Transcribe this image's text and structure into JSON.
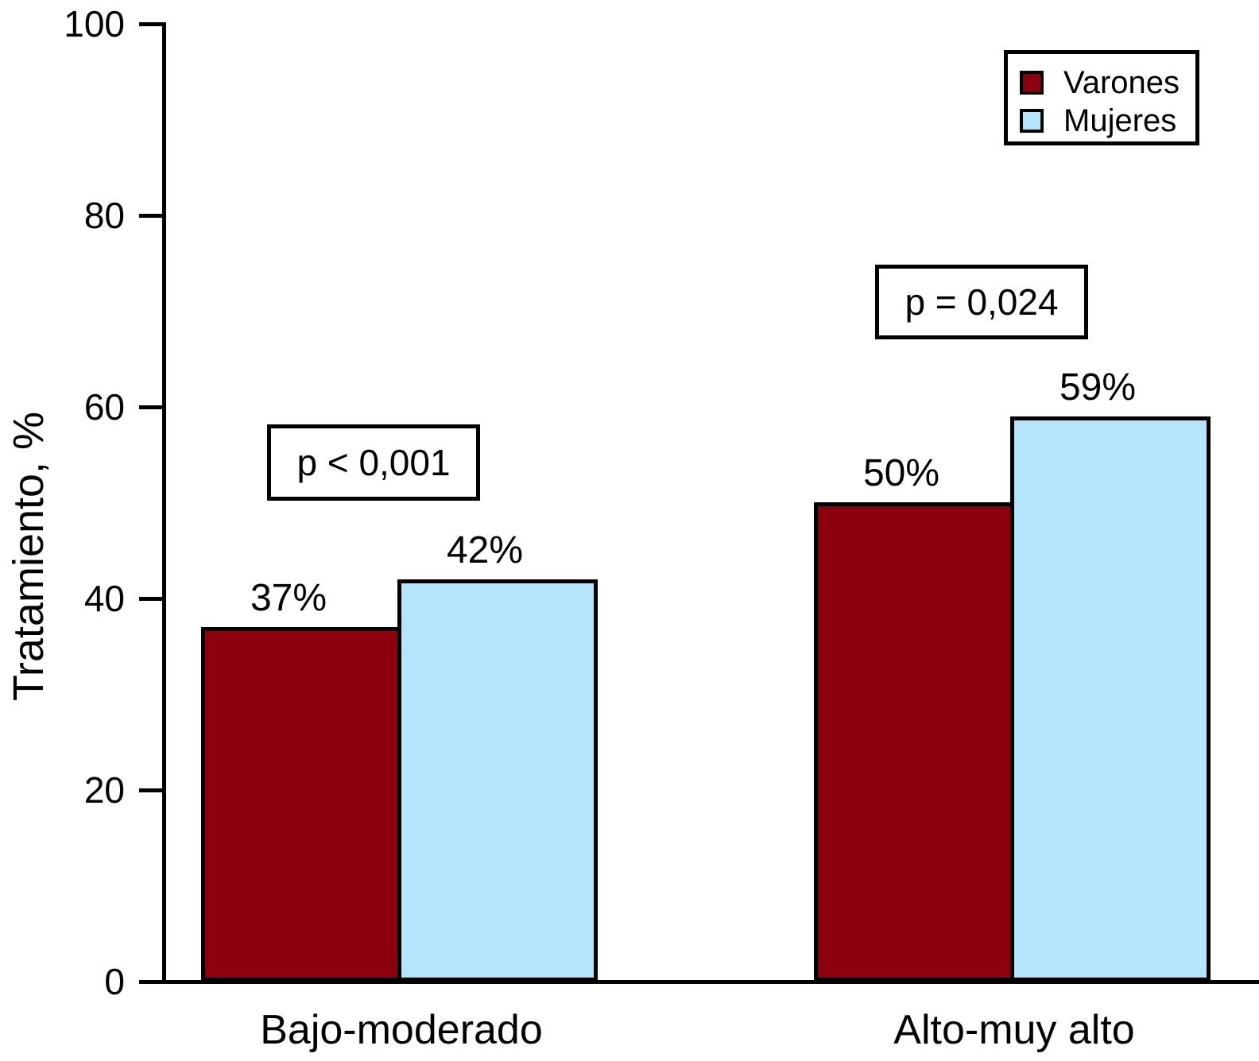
{
  "chart_data": {
    "type": "bar",
    "title": "",
    "ylabel": "Tratamiento, %",
    "xlabel": "",
    "ylim": [
      0,
      100
    ],
    "yticks": [
      0,
      20,
      40,
      60,
      80,
      100
    ],
    "categories": [
      "Bajo-moderado",
      "Alto-muy alto"
    ],
    "series": [
      {
        "name": "Varones",
        "color": "#8B000C",
        "values": [
          37,
          50
        ]
      },
      {
        "name": "Mujeres",
        "color": "#B4E5FD",
        "values": [
          42,
          59
        ]
      }
    ],
    "value_suffix": "%",
    "annotations": [
      {
        "text": "p < 0,001",
        "category": "Bajo-moderado"
      },
      {
        "text": "p = 0,024",
        "category": "Alto-muy alto"
      }
    ],
    "legend": {
      "position": "top-right",
      "entries": [
        "Varones",
        "Mujeres"
      ]
    },
    "grid": false,
    "axis_color": "#000000",
    "bar_border_color": "#000000",
    "background_color": "#FFFFFF"
  }
}
